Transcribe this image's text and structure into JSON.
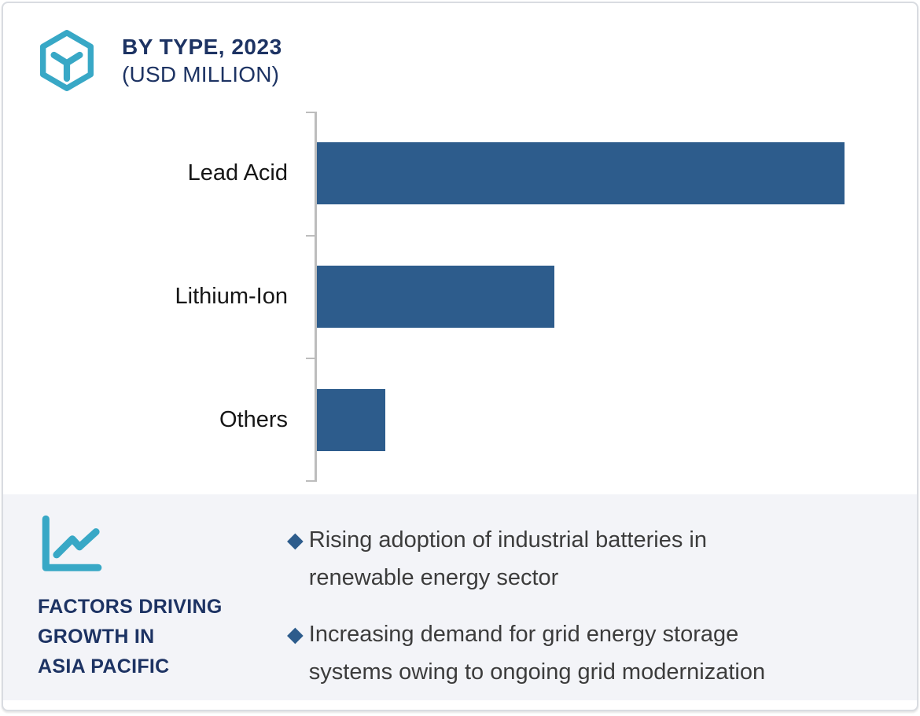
{
  "header": {
    "title_line1": "BY TYPE, 2023",
    "title_line2": "(USD MILLION)",
    "icon": "hexagon-cube-icon"
  },
  "chart_data": {
    "type": "bar",
    "orientation": "horizontal",
    "title": "BY TYPE, 2023 (USD MILLION)",
    "unit": "USD Million",
    "categories": [
      "Lead Acid",
      "Lithium-Ion",
      "Others"
    ],
    "values_pct_of_max": [
      100,
      45,
      13
    ],
    "value_labels_shown": false,
    "axis": {
      "value_axis_tick_labels": "none",
      "category_axis_line": true,
      "category_tick_marks": 4,
      "gridlines": false
    },
    "legend": "none",
    "bar_color": "#2D5C8C"
  },
  "factors": {
    "icon": "line-chart-icon",
    "heading_lines": [
      "FACTORS DRIVING",
      "GROWTH IN",
      "ASIA PACIFIC"
    ],
    "bullet_icon": "diamond-icon",
    "bullet_glyph": "◆",
    "items": [
      {
        "text": "Rising adoption of industrial batteries in renewable energy sector",
        "lines": [
          "Rising adoption of industrial batteries in",
          "renewable energy sector"
        ]
      },
      {
        "text": "Increasing demand  for grid energy storage systems owing to ongoing grid modernization",
        "lines": [
          "Increasing demand  for grid energy storage",
          "systems owing to ongoing grid modernization"
        ]
      }
    ]
  },
  "colors": {
    "bar_blue": "#2D5C8C",
    "navy": "#1D3363",
    "teal": "#38A8C6",
    "panel_bg": "#F3F4F8",
    "axis_gray": "#BDBDBD"
  }
}
